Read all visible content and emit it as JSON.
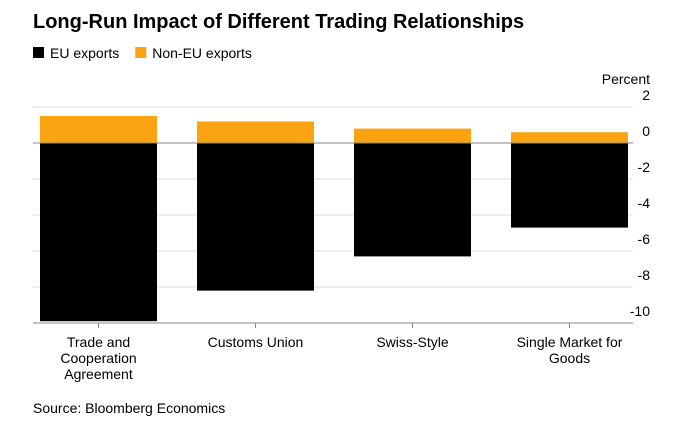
{
  "chart_data": {
    "type": "bar",
    "stacked": true,
    "title": "Long-Run Impact of Different Trading Relationships",
    "y_axis_label": "Percent",
    "source": "Source: Bloomberg Economics",
    "categories": [
      "Trade and Cooperation Agreement",
      "Customs Union",
      "Swiss-Style",
      "Single Market for Goods"
    ],
    "series": [
      {
        "name": "EU exports",
        "color": "#000000",
        "values": [
          -9.9,
          -8.2,
          -6.3,
          -4.7
        ]
      },
      {
        "name": "Non-EU exports",
        "color": "#fca311",
        "values": [
          1.5,
          1.2,
          0.8,
          0.6
        ]
      }
    ],
    "ylim": [
      -10,
      2
    ],
    "yticks": [
      2,
      0,
      -2,
      -4,
      -6,
      -8,
      -10
    ],
    "grid": true
  }
}
